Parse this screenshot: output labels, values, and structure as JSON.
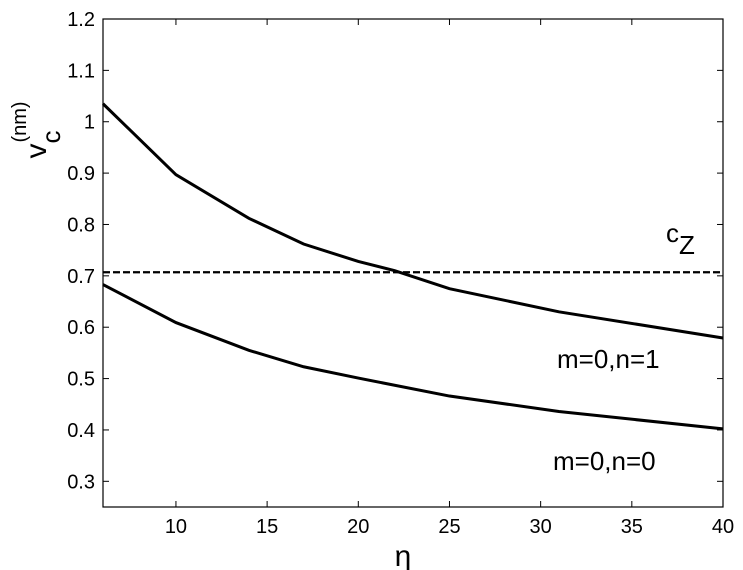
{
  "chart_data": {
    "type": "line",
    "xlabel": "η",
    "ylabel": {
      "main": "v",
      "sub": "c",
      "sup": "(nm)"
    },
    "xlim": [
      6,
      40
    ],
    "ylim": [
      0.25,
      1.2
    ],
    "xticks": [
      10,
      15,
      20,
      25,
      30,
      35,
      40
    ],
    "xtick_labels": [
      "10",
      "15",
      "20",
      "25",
      "30",
      "35",
      "40"
    ],
    "yticks": [
      0.3,
      0.4,
      0.5,
      0.6,
      0.7,
      0.8,
      0.9,
      1.0,
      1.1,
      1.2
    ],
    "ytick_labels": [
      "0.3",
      "0.4",
      "0.5",
      "0.6",
      "0.7",
      "0.8",
      "0.9",
      "1",
      "1.1",
      "1.2"
    ],
    "grid": false,
    "legend": "none",
    "series": [
      {
        "label_text": "m=0,n=1",
        "style": "solid",
        "color": "#000000",
        "x": [
          6,
          10,
          14,
          17,
          20,
          22,
          25,
          31,
          40
        ],
        "y": [
          1.035,
          0.897,
          0.812,
          0.762,
          0.728,
          0.71,
          0.675,
          0.63,
          0.579
        ]
      },
      {
        "label_text": "m=0,n=0",
        "style": "solid",
        "color": "#000000",
        "x": [
          6,
          10,
          14,
          17,
          20,
          25,
          31,
          40
        ],
        "y": [
          0.683,
          0.609,
          0.555,
          0.523,
          0.501,
          0.466,
          0.436,
          0.402
        ]
      },
      {
        "label_text": "c",
        "label_sub": "Z",
        "style": "dashed",
        "color": "#000000",
        "x": [
          6,
          40
        ],
        "y": [
          0.707,
          0.707
        ]
      }
    ]
  }
}
